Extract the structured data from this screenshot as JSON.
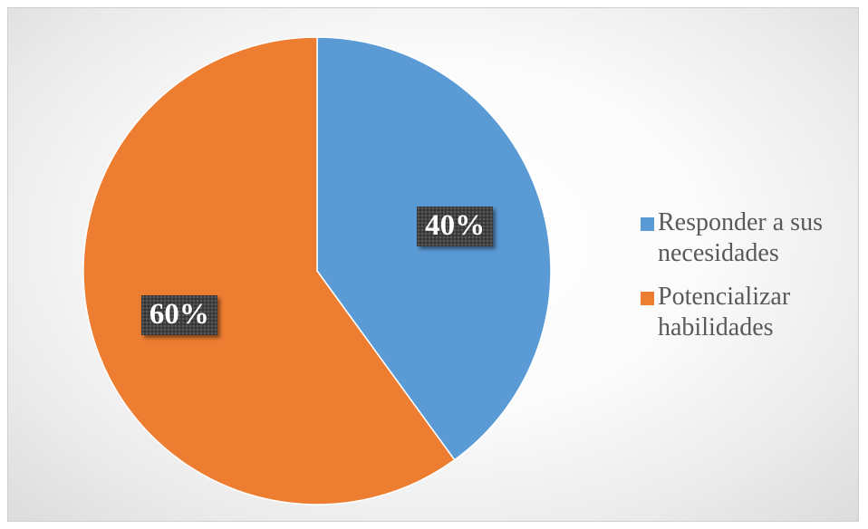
{
  "chart_data": {
    "type": "pie",
    "title": "",
    "categories": [
      "Responder a sus necesidades",
      "Potencializar habilidades"
    ],
    "values": [
      40,
      60
    ],
    "value_labels": [
      "40%",
      "60%"
    ],
    "colors": [
      "#5b9bd5",
      "#ed7d31"
    ],
    "start_angle_deg": 0,
    "direction": "clockwise",
    "legend_position": "right",
    "legend": [
      {
        "line1": "Responder a sus",
        "line2": "necesidades",
        "color": "#5b9bd5"
      },
      {
        "line1": "Potencializar",
        "line2": "habilidades",
        "color": "#ed7d31"
      }
    ]
  }
}
